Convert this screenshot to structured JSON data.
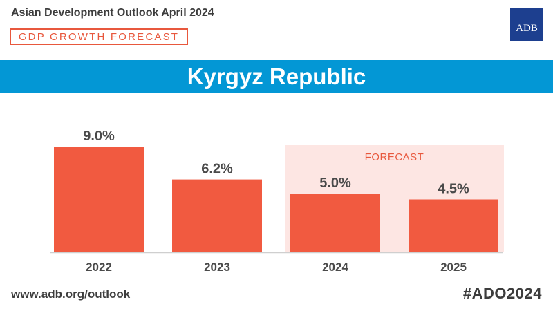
{
  "header": {
    "title": "Asian Development Outlook April 2024",
    "tag": "GDP GROWTH FORECAST",
    "logo_text": "ADB"
  },
  "banner": {
    "title": "Kyrgyz Republic"
  },
  "footer": {
    "url": "www.adb.org/outlook",
    "hashtag": "#ADO2024"
  },
  "colors": {
    "bar": "#f15a40",
    "forecast_bg": "#fde6e3",
    "forecast_text": "#e8583d",
    "banner": "#0397d5",
    "logo": "#1d3f8f",
    "text": "#4a4a4a"
  },
  "chart_data": {
    "type": "bar",
    "categories": [
      "2022",
      "2023",
      "2024",
      "2025"
    ],
    "values": [
      9.0,
      6.2,
      5.0,
      4.5
    ],
    "data_labels": [
      "9.0%",
      "6.2%",
      "5.0%",
      "4.5%"
    ],
    "ylim": [
      0,
      10
    ],
    "grid": false,
    "forecast": {
      "label": "FORECAST",
      "categories": [
        "2024",
        "2025"
      ]
    }
  }
}
